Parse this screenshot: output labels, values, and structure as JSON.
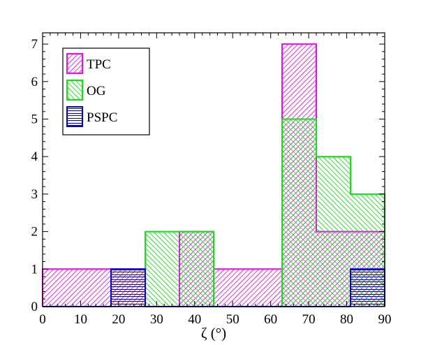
{
  "chart_data": {
    "type": "histogram",
    "title": "",
    "xlabel": "ζ (°)",
    "ylabel": "",
    "xlim": [
      0,
      90
    ],
    "ylim": [
      0,
      7.3
    ],
    "xticks": [
      0,
      10,
      20,
      30,
      40,
      50,
      60,
      70,
      80,
      90
    ],
    "yticks": [
      0,
      1,
      2,
      3,
      4,
      5,
      6,
      7
    ],
    "grid": false,
    "legend_position": "top-left",
    "series": [
      {
        "name": "TPC",
        "color": "#ff00ff",
        "hatch": "diagonal-up",
        "bins": [
          {
            "x0": 0,
            "x1": 9,
            "count": 1
          },
          {
            "x0": 9,
            "x1": 18,
            "count": 1
          },
          {
            "x0": 18,
            "x1": 27,
            "count": 1
          },
          {
            "x0": 27,
            "x1": 36,
            "count": 0
          },
          {
            "x0": 36,
            "x1": 45,
            "count": 2
          },
          {
            "x0": 45,
            "x1": 54,
            "count": 1
          },
          {
            "x0": 54,
            "x1": 63,
            "count": 1
          },
          {
            "x0": 63,
            "x1": 72,
            "count": 7
          },
          {
            "x0": 72,
            "x1": 81,
            "count": 2
          },
          {
            "x0": 81,
            "x1": 90,
            "count": 2
          }
        ]
      },
      {
        "name": "OG",
        "color": "#00ee00",
        "hatch": "diagonal-down",
        "bins": [
          {
            "x0": 0,
            "x1": 9,
            "count": 0
          },
          {
            "x0": 9,
            "x1": 18,
            "count": 0
          },
          {
            "x0": 18,
            "x1": 27,
            "count": 0
          },
          {
            "x0": 27,
            "x1": 36,
            "count": 2
          },
          {
            "x0": 36,
            "x1": 45,
            "count": 2
          },
          {
            "x0": 45,
            "x1": 54,
            "count": 0
          },
          {
            "x0": 54,
            "x1": 63,
            "count": 0
          },
          {
            "x0": 63,
            "x1": 72,
            "count": 5
          },
          {
            "x0": 72,
            "x1": 81,
            "count": 4
          },
          {
            "x0": 81,
            "x1": 90,
            "count": 3
          }
        ]
      },
      {
        "name": "PSPC",
        "color": "#0000ee",
        "hatch": "horizontal",
        "bins": [
          {
            "x0": 0,
            "x1": 9,
            "count": 0
          },
          {
            "x0": 9,
            "x1": 18,
            "count": 0
          },
          {
            "x0": 18,
            "x1": 27,
            "count": 1
          },
          {
            "x0": 27,
            "x1": 36,
            "count": 0
          },
          {
            "x0": 36,
            "x1": 45,
            "count": 0
          },
          {
            "x0": 45,
            "x1": 54,
            "count": 0
          },
          {
            "x0": 54,
            "x1": 63,
            "count": 0
          },
          {
            "x0": 63,
            "x1": 72,
            "count": 0
          },
          {
            "x0": 72,
            "x1": 81,
            "count": 0
          },
          {
            "x0": 81,
            "x1": 90,
            "count": 1
          }
        ]
      }
    ]
  }
}
